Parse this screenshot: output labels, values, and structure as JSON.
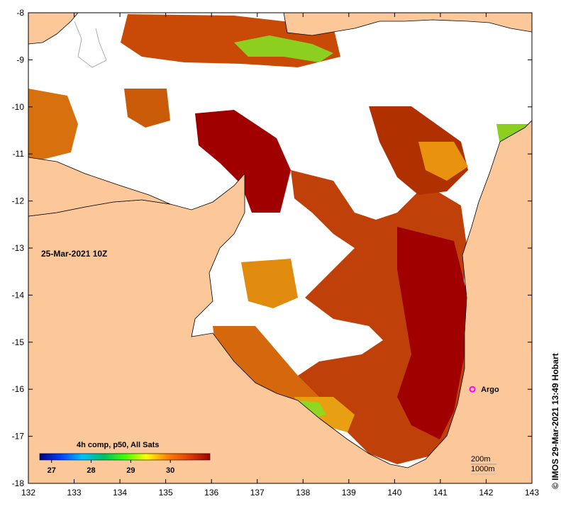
{
  "map": {
    "date_label": "25-Mar-2021 10Z",
    "credit": "© IMOS 29-Mar-2021 13:49 Hobart",
    "colorbar_title": "4h comp, p50, All Sats",
    "colorbar_ticks": [
      "27",
      "28",
      "29",
      "30"
    ],
    "colorbar_range": [
      26.7,
      31.0
    ],
    "colorbar_stops": [
      "#000080",
      "#0040ff",
      "#00c0ff",
      "#00c060",
      "#40ff00",
      "#ffff00",
      "#ff8000",
      "#e04000",
      "#a00000"
    ],
    "x_ticks": [
      132,
      133,
      134,
      135,
      136,
      137,
      138,
      139,
      140,
      141,
      142,
      143
    ],
    "y_ticks": [
      -8,
      -9,
      -10,
      -11,
      -12,
      -13,
      -14,
      -15,
      -16,
      -17,
      -18
    ],
    "lon_range": [
      132,
      143
    ],
    "lat_range": [
      -18,
      -8
    ],
    "depth_contours": [
      "200m",
      "1000m"
    ],
    "argo_label": "Argo",
    "argo_position": [
      141.7,
      -16.0
    ],
    "colors": {
      "land": "#fdc899",
      "no_data": "#ffffff",
      "sst_hot": "#a00000",
      "sst_warm": "#c84a06",
      "sst_mid": "#e88a10",
      "sst_cool": "#a0e020",
      "argo": "#ff00ff"
    }
  }
}
